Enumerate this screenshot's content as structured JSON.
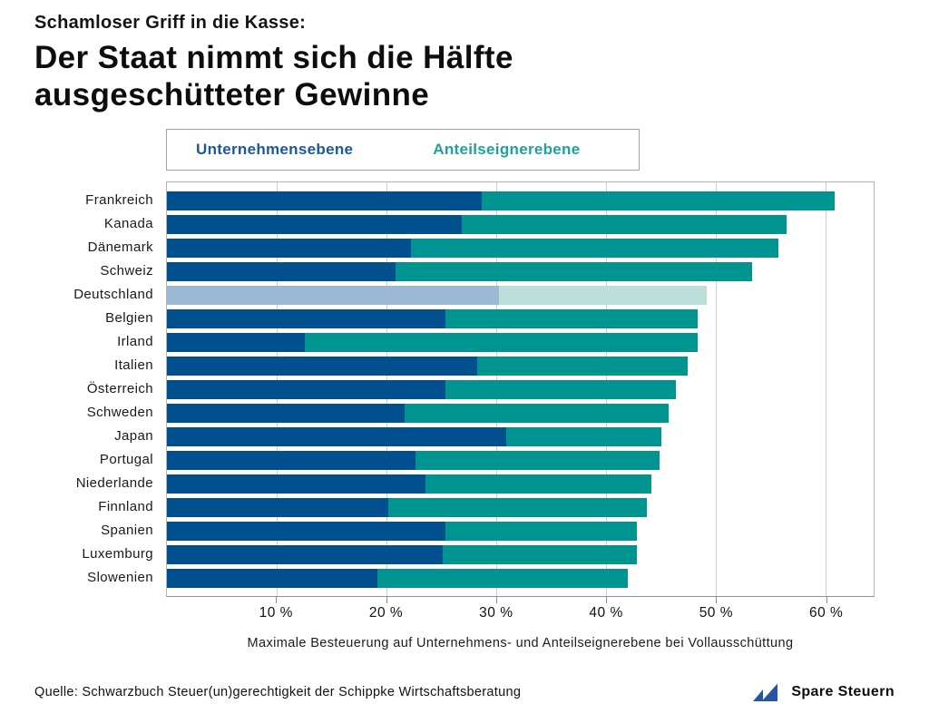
{
  "header": {
    "kicker": "Schamloser Griff in die Kasse:",
    "title": "Der Staat nimmt sich die Hälfte\nausgeschütteter Gewinne"
  },
  "legend": {
    "items": [
      {
        "label": "Unternehmensebene",
        "color": "#1b5899"
      },
      {
        "label": "Anteilseignerebene",
        "color": "#1ea29c"
      }
    ]
  },
  "chart_data": {
    "type": "bar",
    "orientation": "horizontal-stacked",
    "title": "Der Staat nimmt sich die Hälfte ausgeschütteter Gewinne",
    "xlabel": "Maximale Besteuerung auf Unternehmens- und Anteilseignerebene bei Vollausschüttung",
    "grid": true,
    "xlim": [
      0,
      64.4
    ],
    "x_ticks": [
      {
        "value": 10,
        "label": "10 %"
      },
      {
        "value": 20,
        "label": "20 %"
      },
      {
        "value": 30,
        "label": "30 %"
      },
      {
        "value": 40,
        "label": "40 %"
      },
      {
        "value": 50,
        "label": "50 %"
      },
      {
        "value": 60,
        "label": "60 %"
      }
    ],
    "categories": [
      "Frankreich",
      "Kanada",
      "Dänemark",
      "Schweiz",
      "Deutschland",
      "Belgien",
      "Irland",
      "Italien",
      "Österreich",
      "Schweden",
      "Japan",
      "Portugal",
      "Niederlande",
      "Finnland",
      "Spanien",
      "Luxemburg",
      "Slowenien"
    ],
    "series": [
      {
        "name": "Unternehmensebene",
        "color": "#00508F",
        "highlight_color": "#9BB8D4",
        "values": [
          28.6,
          26.8,
          22.2,
          20.8,
          30.2,
          25.3,
          12.5,
          28.2,
          25.3,
          21.6,
          30.8,
          22.6,
          23.5,
          20.1,
          25.3,
          25.1,
          19.1
        ]
      },
      {
        "name": "Anteilseignerebene",
        "color": "#009490",
        "highlight_color": "#BCDFDB",
        "values": [
          32.1,
          29.5,
          33.4,
          32.4,
          18.9,
          22.9,
          35.7,
          19.1,
          21.0,
          24.0,
          14.1,
          22.2,
          20.5,
          23.5,
          17.4,
          17.6,
          22.8
        ]
      }
    ],
    "totals": [
      60.7,
      56.3,
      55.6,
      53.2,
      49.1,
      48.2,
      48.2,
      47.3,
      46.3,
      45.6,
      44.9,
      44.8,
      44.0,
      43.6,
      42.7,
      42.7,
      41.9
    ],
    "highlight_category": "Deutschland"
  },
  "footer": {
    "source": "Quelle: Schwarzbuch Steuer(un)gerechtigkeit der Schippke Wirtschaftsberatung",
    "brand": {
      "label": "Spare Steuern",
      "icon": "sailboat-sails-icon",
      "icon_color": "#2456A4"
    }
  }
}
